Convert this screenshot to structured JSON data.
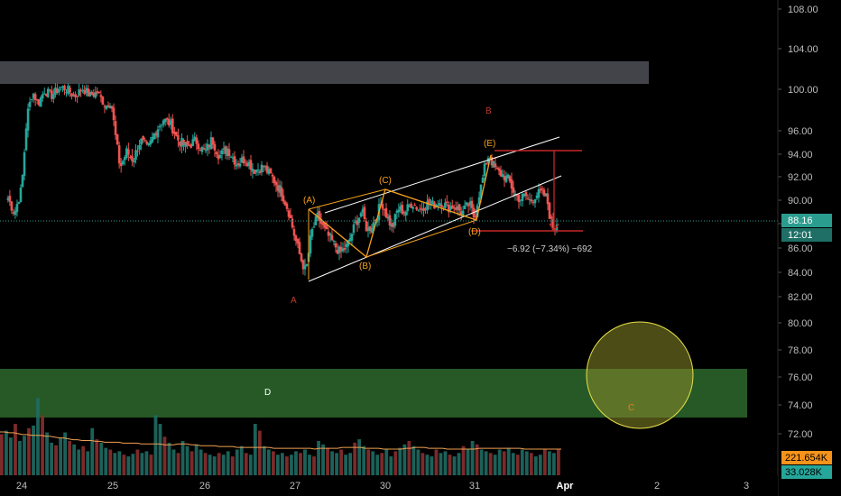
{
  "chart_data": {
    "type": "candlestick",
    "y_axis": {
      "position": "right",
      "range": [
        70,
        109
      ],
      "tick_labels": [
        "108.00",
        "104.00",
        "100.00",
        "96.00",
        "94.00",
        "92.00",
        "90.00",
        "88.00",
        "86.00",
        "84.00",
        "82.00",
        "80.00",
        "78.00",
        "76.00",
        "74.00",
        "72.00"
      ],
      "tick_values": [
        108,
        104,
        100,
        96,
        94,
        92,
        90,
        88,
        86,
        84,
        82,
        80,
        78,
        76,
        74,
        72
      ]
    },
    "x_axis": {
      "tick_labels": [
        "24",
        "25",
        "26",
        "27",
        "30",
        "31",
        "Apr",
        "2",
        "3"
      ],
      "tick_days": [
        0,
        1,
        2,
        3,
        4,
        5,
        6,
        7,
        8
      ],
      "visible_range_days": [
        -0.2,
        9.0
      ]
    },
    "price_series": [
      {
        "d": -0.15,
        "c": 90.2
      },
      {
        "d": -0.08,
        "c": 88.9
      },
      {
        "d": 0.0,
        "c": 91.0
      },
      {
        "d": 0.06,
        "c": 97.5
      },
      {
        "d": 0.12,
        "c": 99.8
      },
      {
        "d": 0.18,
        "c": 98.6
      },
      {
        "d": 0.25,
        "c": 99.9
      },
      {
        "d": 0.33,
        "c": 99.4
      },
      {
        "d": 0.42,
        "c": 100.2
      },
      {
        "d": 0.5,
        "c": 100.0
      },
      {
        "d": 0.58,
        "c": 99.3
      },
      {
        "d": 0.67,
        "c": 100.1
      },
      {
        "d": 0.75,
        "c": 99.4
      },
      {
        "d": 0.83,
        "c": 99.7
      },
      {
        "d": 0.92,
        "c": 98.4
      },
      {
        "d": 0.98,
        "c": 98.9
      },
      {
        "d": 1.03,
        "c": 95.5
      },
      {
        "d": 1.08,
        "c": 92.8
      },
      {
        "d": 1.15,
        "c": 94.2
      },
      {
        "d": 1.22,
        "c": 93.5
      },
      {
        "d": 1.3,
        "c": 95.2
      },
      {
        "d": 1.38,
        "c": 94.4
      },
      {
        "d": 1.46,
        "c": 95.9
      },
      {
        "d": 1.55,
        "c": 97.1
      },
      {
        "d": 1.63,
        "c": 96.6
      },
      {
        "d": 1.7,
        "c": 95.3
      },
      {
        "d": 1.8,
        "c": 94.6
      },
      {
        "d": 1.9,
        "c": 95.2
      },
      {
        "d": 2.0,
        "c": 94.1
      },
      {
        "d": 2.08,
        "c": 95.3
      },
      {
        "d": 2.16,
        "c": 93.8
      },
      {
        "d": 2.25,
        "c": 94.5
      },
      {
        "d": 2.35,
        "c": 93.2
      },
      {
        "d": 2.45,
        "c": 93.6
      },
      {
        "d": 2.55,
        "c": 92.6
      },
      {
        "d": 2.65,
        "c": 92.9
      },
      {
        "d": 2.75,
        "c": 91.9
      },
      {
        "d": 2.85,
        "c": 90.7
      },
      {
        "d": 2.93,
        "c": 89.0
      },
      {
        "d": 3.0,
        "c": 86.8
      },
      {
        "d": 3.06,
        "c": 85.2
      },
      {
        "d": 3.12,
        "c": 84.0
      },
      {
        "d": 3.18,
        "c": 87.2
      },
      {
        "d": 3.25,
        "c": 88.6
      },
      {
        "d": 3.33,
        "c": 87.4
      },
      {
        "d": 3.42,
        "c": 86.4
      },
      {
        "d": 3.5,
        "c": 85.6
      },
      {
        "d": 3.58,
        "c": 86.2
      },
      {
        "d": 3.66,
        "c": 87.8
      },
      {
        "d": 3.74,
        "c": 89.1
      },
      {
        "d": 3.8,
        "c": 87.4
      },
      {
        "d": 3.88,
        "c": 88.2
      },
      {
        "d": 3.96,
        "c": 89.9
      },
      {
        "d": 4.02,
        "c": 88.6
      },
      {
        "d": 4.08,
        "c": 87.6
      },
      {
        "d": 4.14,
        "c": 89.3
      },
      {
        "d": 4.22,
        "c": 89.0
      },
      {
        "d": 4.3,
        "c": 89.8
      },
      {
        "d": 4.38,
        "c": 89.2
      },
      {
        "d": 4.46,
        "c": 89.7
      },
      {
        "d": 4.54,
        "c": 89.6
      },
      {
        "d": 4.62,
        "c": 89.9
      },
      {
        "d": 4.7,
        "c": 89.4
      },
      {
        "d": 4.78,
        "c": 89.5
      },
      {
        "d": 4.86,
        "c": 88.9
      },
      {
        "d": 4.94,
        "c": 89.7
      },
      {
        "d": 5.0,
        "c": 88.4
      },
      {
        "d": 5.04,
        "c": 90.3
      },
      {
        "d": 5.08,
        "c": 91.4
      },
      {
        "d": 5.12,
        "c": 93.2
      },
      {
        "d": 5.16,
        "c": 94.0
      },
      {
        "d": 5.2,
        "c": 93.1
      },
      {
        "d": 5.26,
        "c": 92.4
      },
      {
        "d": 5.32,
        "c": 92.1
      },
      {
        "d": 5.38,
        "c": 91.7
      },
      {
        "d": 5.44,
        "c": 90.6
      },
      {
        "d": 5.5,
        "c": 90.1
      },
      {
        "d": 5.56,
        "c": 90.4
      },
      {
        "d": 5.62,
        "c": 89.9
      },
      {
        "d": 5.68,
        "c": 90.5
      },
      {
        "d": 5.74,
        "c": 90.6
      },
      {
        "d": 5.8,
        "c": 90.2
      },
      {
        "d": 5.84,
        "c": 88.3
      },
      {
        "d": 5.88,
        "c": 87.4
      },
      {
        "d": 5.91,
        "c": 88.16
      }
    ],
    "volume": {
      "labels": [
        "221.654K",
        "33.028K"
      ],
      "bars": [
        48,
        52,
        44,
        60,
        40,
        46,
        55,
        58,
        90,
        70,
        50,
        38,
        35,
        44,
        50,
        40,
        36,
        30,
        34,
        28,
        55,
        42,
        38,
        32,
        30,
        26,
        28,
        24,
        22,
        25,
        30,
        26,
        28,
        24,
        70,
        60,
        45,
        38,
        30,
        26,
        40,
        34,
        28,
        36,
        30,
        26,
        24,
        22,
        26,
        24,
        28,
        22,
        30,
        34,
        26,
        24,
        60,
        52,
        34,
        30,
        28,
        24,
        26,
        22,
        24,
        28,
        26,
        30,
        24,
        22,
        40,
        36,
        32,
        28,
        26,
        30,
        24,
        26,
        38,
        42,
        34,
        30,
        28,
        24,
        26,
        30,
        22,
        28,
        32,
        36,
        40,
        34,
        30,
        26,
        24,
        22,
        30,
        26,
        28,
        24,
        22,
        26,
        34,
        30,
        40,
        36,
        30,
        28,
        26,
        24,
        30,
        28,
        32,
        26,
        24,
        30,
        28,
        26,
        22,
        24,
        30,
        28,
        26,
        30
      ],
      "ma": [
        40,
        40,
        39,
        39,
        38,
        37,
        37,
        36,
        36,
        36,
        35,
        35,
        34,
        33,
        33,
        32,
        31,
        31,
        30,
        30,
        30,
        29,
        29,
        28,
        28,
        28,
        28,
        27,
        27,
        27,
        27,
        26,
        26,
        26,
        26,
        26,
        25,
        25,
        25,
        26,
        26,
        26,
        25,
        25,
        24,
        24,
        24,
        24,
        23,
        23,
        23,
        23,
        22,
        22,
        22,
        22,
        22,
        22,
        22,
        22,
        21,
        21,
        21,
        21,
        21,
        21,
        21,
        21,
        21,
        20,
        21,
        21,
        21,
        21,
        21,
        22,
        22,
        22,
        22,
        22,
        21,
        21,
        21,
        21,
        20,
        20,
        20,
        20,
        20,
        21,
        21,
        22,
        22,
        22,
        21,
        21,
        21,
        21,
        20,
        20,
        20,
        20,
        20,
        20,
        20,
        21,
        21,
        21,
        21,
        21,
        21,
        21,
        21,
        21,
        21,
        20,
        20,
        20,
        20,
        20,
        20,
        20,
        20,
        20
      ]
    },
    "last_price": {
      "value": 88.16,
      "label": "88.16",
      "countdown": "12:01"
    },
    "annotations": {
      "wave_labels": [
        "(A)",
        "(B)",
        "(C)",
        "(D)",
        "(E)"
      ],
      "letters": [
        "A",
        "B",
        "C",
        "D"
      ],
      "measure": "−6.92 (−7.34%) −692"
    },
    "zones": [
      {
        "kind": "resistance",
        "from": 101.0,
        "to": 103.2,
        "color": "#4a4b52"
      },
      {
        "kind": "support",
        "from": 73.0,
        "to": 76.6,
        "color": "#2e6b2e"
      }
    ],
    "colors": {
      "up": "#26a69a",
      "down": "#ef5350",
      "triangle": "#f7a21b",
      "channel": "#ffffff",
      "measure": "#c62828",
      "circle": "#e6e04a",
      "last_price": "#2a9d8f",
      "volume_label_orange": "#f7931a",
      "volume_label_teal": "#26a69a"
    }
  }
}
